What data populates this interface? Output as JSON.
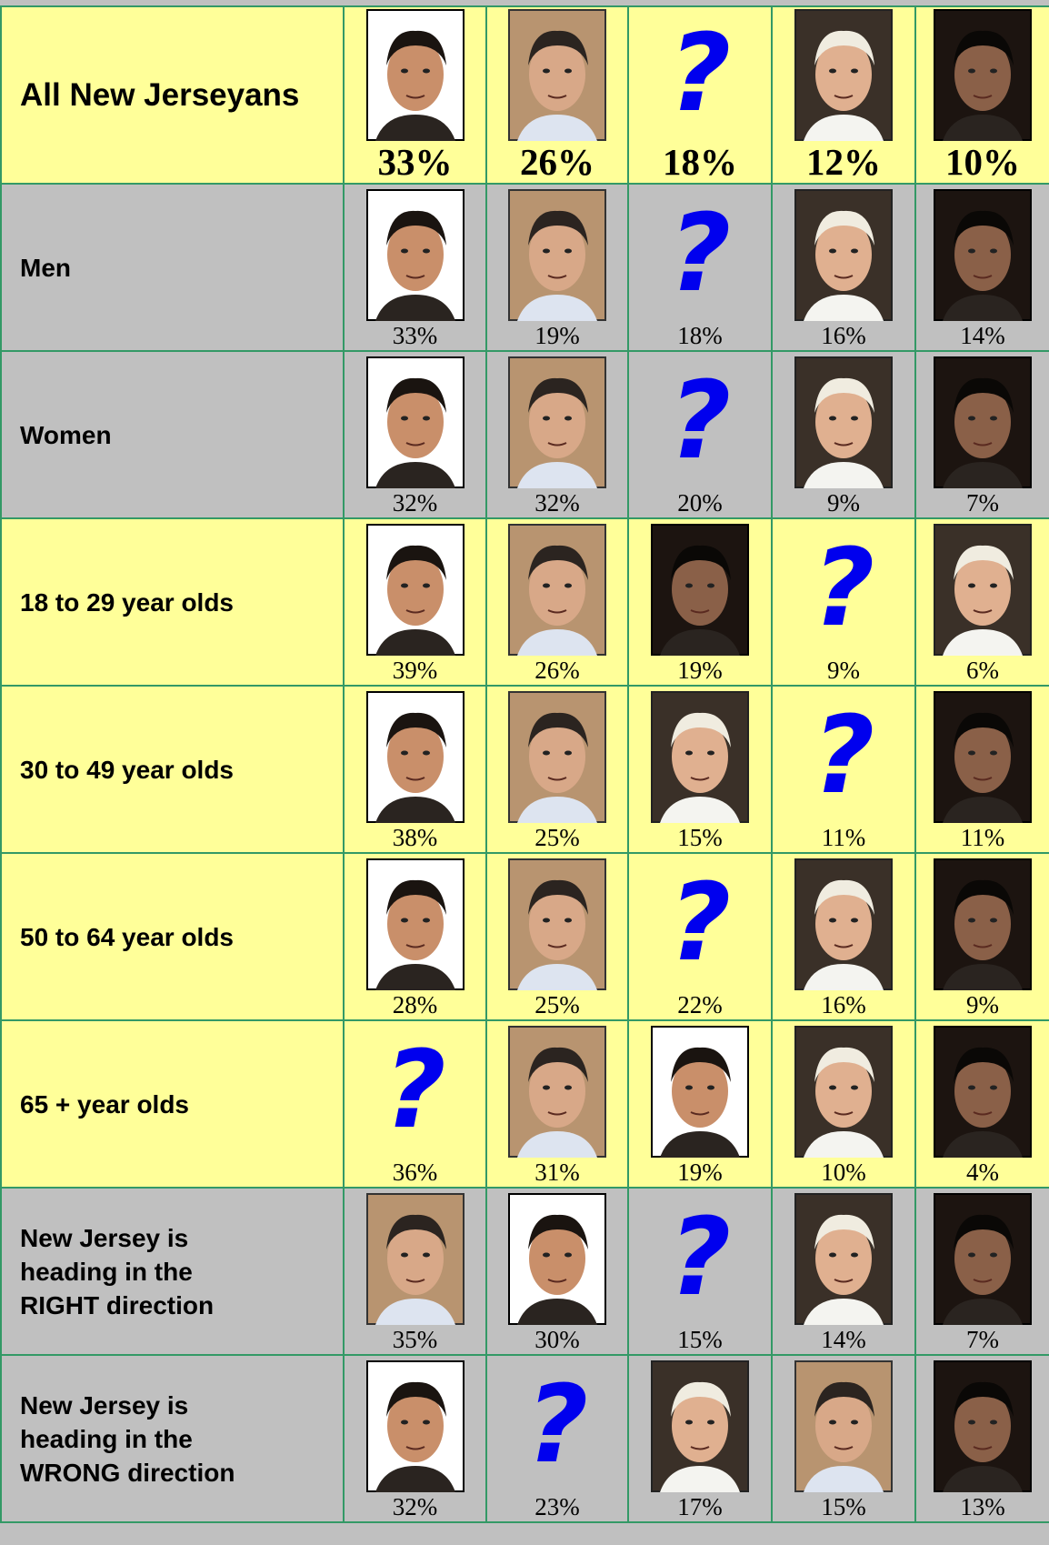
{
  "table": {
    "rows": [
      {
        "label": "All New Jerseyans",
        "cells": [
          {
            "pct": "33%"
          },
          {
            "pct": "26%"
          },
          {
            "symbol": "?",
            "pct": "18%"
          },
          {
            "pct": "12%"
          },
          {
            "pct": "10%"
          }
        ]
      },
      {
        "label": "Men",
        "cells": [
          {
            "pct": "33%"
          },
          {
            "pct": "19%"
          },
          {
            "symbol": "?",
            "pct": "18%"
          },
          {
            "pct": "16%"
          },
          {
            "pct": "14%"
          }
        ]
      },
      {
        "label": "Women",
        "cells": [
          {
            "pct": "32%"
          },
          {
            "pct": "32%"
          },
          {
            "symbol": "?",
            "pct": "20%"
          },
          {
            "pct": "9%"
          },
          {
            "pct": "7%"
          }
        ]
      },
      {
        "label": "18 to 29 year olds",
        "cells": [
          {
            "pct": "39%"
          },
          {
            "pct": "26%"
          },
          {
            "pct": "19%"
          },
          {
            "symbol": "?",
            "pct": "9%"
          },
          {
            "pct": "6%"
          }
        ]
      },
      {
        "label": "30 to 49 year olds",
        "cells": [
          {
            "pct": "38%"
          },
          {
            "pct": "25%"
          },
          {
            "pct": "15%"
          },
          {
            "symbol": "?",
            "pct": "11%"
          },
          {
            "pct": "11%"
          }
        ]
      },
      {
        "label": "50 to 64 year olds",
        "cells": [
          {
            "pct": "28%"
          },
          {
            "pct": "25%"
          },
          {
            "symbol": "?",
            "pct": "22%"
          },
          {
            "pct": "16%"
          },
          {
            "pct": "9%"
          }
        ]
      },
      {
        "label": "65 + year olds",
        "cells": [
          {
            "symbol": "?",
            "pct": "36%"
          },
          {
            "pct": "31%"
          },
          {
            "pct": "19%"
          },
          {
            "pct": "10%"
          },
          {
            "pct": "4%"
          }
        ]
      },
      {
        "label": "New Jersey is heading in the RIGHT direction",
        "cells": [
          {
            "pct": "35%"
          },
          {
            "pct": "30%"
          },
          {
            "symbol": "?",
            "pct": "15%"
          },
          {
            "pct": "14%"
          },
          {
            "pct": "7%"
          }
        ]
      },
      {
        "label": "New Jersey is heading in the WRONG direction",
        "cells": [
          {
            "pct": "32%"
          },
          {
            "symbol": "?",
            "pct": "23%"
          },
          {
            "pct": "17%"
          },
          {
            "pct": "15%"
          },
          {
            "pct": "13%"
          }
        ]
      }
    ]
  }
}
